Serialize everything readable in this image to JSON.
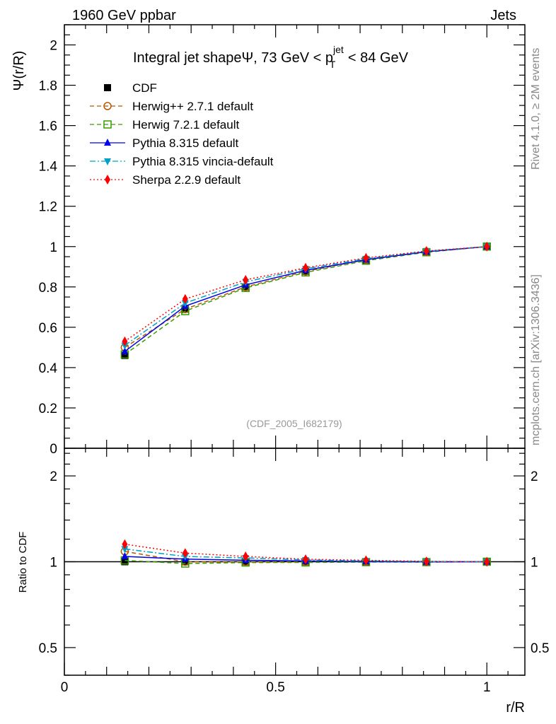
{
  "header": {
    "left": "1960 GeV ppbar",
    "right": "Jets",
    "side_top": "Rivet 4.1.0, ≥ 2M events",
    "side_bottom": "mcplots.cern.ch [arXiv:1306.3436]"
  },
  "chart_data": {
    "type": "line",
    "title": "Integral jet shapeΨ, 73 GeV < p",
    "title_sup": "jet",
    "title_sub": "T",
    "title_end": " < 84 GeV",
    "analysis_label": "(CDF_2005_I682179)",
    "xlabel": "r/R",
    "ylabel": "Ψ(r/R)",
    "ratio_ylabel": "Ratio to CDF",
    "xlim": [
      0,
      1.09
    ],
    "ylim": [
      0,
      2.1
    ],
    "ratio_ylim": [
      0.4,
      2.5
    ],
    "ratio_scale": "log",
    "x_ticks": [
      "0",
      "0.5",
      "1"
    ],
    "y_ticks": [
      "0",
      "0.2",
      "0.4",
      "0.6",
      "0.8",
      "1",
      "1.2",
      "1.4",
      "1.6",
      "1.8",
      "2"
    ],
    "ratio_ticks": [
      "0.5",
      "1",
      "2"
    ],
    "legend_position": "top-left",
    "x": [
      0.143,
      0.286,
      0.429,
      0.571,
      0.714,
      0.857,
      1.0
    ],
    "series": [
      {
        "name": "CDF",
        "color": "#000000",
        "marker": "square-filled",
        "line": "none",
        "values": [
          0.46,
          0.69,
          0.8,
          0.877,
          0.933,
          0.975,
          1.0
        ]
      },
      {
        "name": "Herwig++ 2.7.1 default",
        "color": "#b35900",
        "marker": "circle-open",
        "line": "dashed",
        "values": [
          0.5,
          0.69,
          0.8,
          0.877,
          0.935,
          0.975,
          1.0
        ]
      },
      {
        "name": "Herwig 7.2.1 default",
        "color": "#3a9a00",
        "marker": "square-open",
        "line": "dashed",
        "values": [
          0.465,
          0.68,
          0.795,
          0.872,
          0.93,
          0.972,
          1.0
        ]
      },
      {
        "name": "Pythia 8.315 default",
        "color": "#0000e6",
        "marker": "triangle-up",
        "line": "solid",
        "values": [
          0.48,
          0.705,
          0.81,
          0.882,
          0.935,
          0.974,
          1.0
        ]
      },
      {
        "name": "Pythia 8.315 vincia-default",
        "color": "#00a0c8",
        "marker": "triangle-down",
        "line": "dashdot",
        "values": [
          0.51,
          0.72,
          0.825,
          0.89,
          0.94,
          0.977,
          1.0
        ]
      },
      {
        "name": "Sherpa 2.2.9 default",
        "color": "#ff0000",
        "marker": "diamond",
        "line": "dotted",
        "values": [
          0.53,
          0.74,
          0.835,
          0.895,
          0.944,
          0.978,
          1.0
        ]
      }
    ]
  }
}
